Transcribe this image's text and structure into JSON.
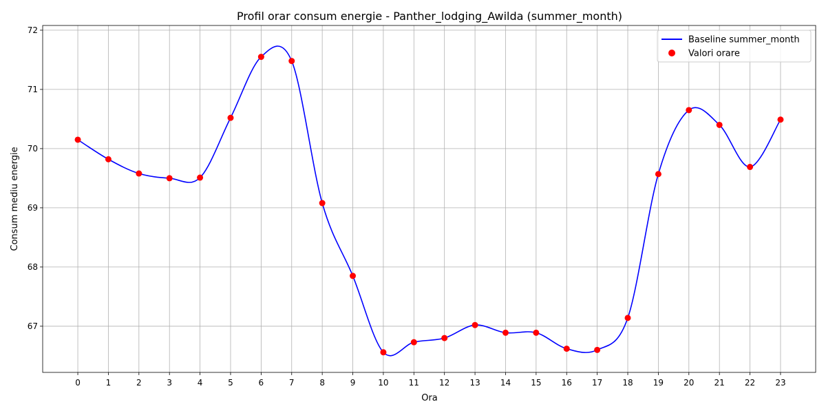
{
  "chart_data": {
    "type": "line",
    "title": "Profil orar consum energie - Panther_lodging_Awilda (summer_month)",
    "xlabel": "Ora",
    "ylabel": "Consum mediu energie",
    "x": [
      0,
      1,
      2,
      3,
      4,
      5,
      6,
      7,
      8,
      9,
      10,
      11,
      12,
      13,
      14,
      15,
      16,
      17,
      18,
      19,
      20,
      21,
      22,
      23
    ],
    "xlim": [
      -1.15,
      24.15
    ],
    "ylim": [
      66.22,
      72.08
    ],
    "xticks": [
      "0",
      "1",
      "2",
      "3",
      "4",
      "5",
      "6",
      "7",
      "8",
      "9",
      "10",
      "11",
      "12",
      "13",
      "14",
      "15",
      "16",
      "17",
      "18",
      "19",
      "20",
      "21",
      "22",
      "23"
    ],
    "yticks": [
      67,
      68,
      69,
      70,
      71,
      72
    ],
    "grid": true,
    "legend_position": "top-right",
    "series": [
      {
        "name": "Baseline summer_month",
        "kind": "line",
        "color": "#0000ff",
        "values": [
          70.15,
          69.82,
          69.58,
          69.5,
          69.51,
          70.52,
          71.55,
          71.48,
          69.08,
          67.85,
          66.56,
          66.73,
          66.8,
          67.02,
          66.89,
          66.89,
          66.62,
          66.6,
          67.14,
          69.57,
          70.65,
          70.4,
          69.69,
          70.49
        ]
      },
      {
        "name": "Valori orare",
        "kind": "scatter",
        "color": "#ff0000",
        "values": [
          70.15,
          69.82,
          69.58,
          69.5,
          69.51,
          70.52,
          71.55,
          71.48,
          69.08,
          67.85,
          66.56,
          66.73,
          66.8,
          67.02,
          66.89,
          66.89,
          66.62,
          66.6,
          67.14,
          69.57,
          70.65,
          70.4,
          69.69,
          70.49
        ]
      }
    ]
  }
}
